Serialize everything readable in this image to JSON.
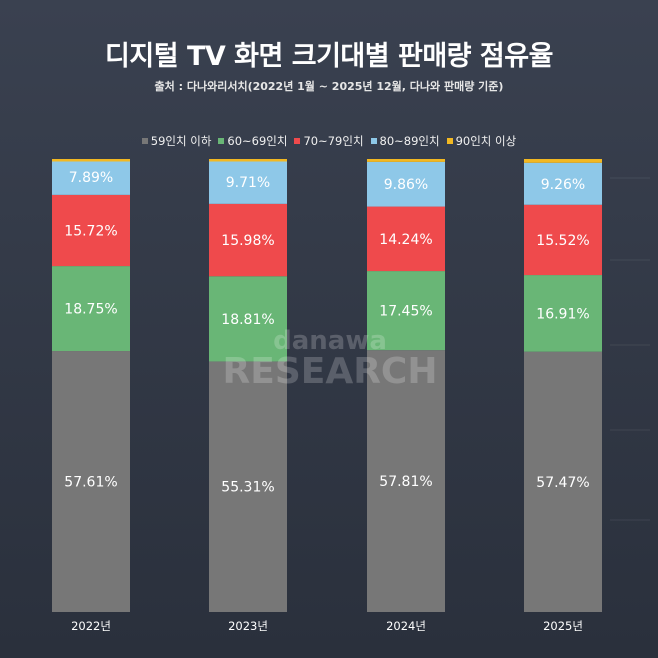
{
  "chart_data": {
    "type": "bar",
    "stacked": true,
    "title": "디지털 TV 화면 크기대별 판매량 점유율",
    "subtitle": "출처 : 다나와리서치(2022년 1월 ~ 2025년 12월, 다나와 판매량 기준)",
    "categories": [
      "2022년",
      "2023년",
      "2024년",
      "2025년"
    ],
    "ylim": [
      0,
      100
    ],
    "legend_position": "top",
    "series": [
      {
        "name": "59인치 이하",
        "color": "#777777",
        "values": [
          57.61,
          55.31,
          57.81,
          57.47
        ],
        "labels": [
          "57.61%",
          "55.31%",
          "57.81%",
          "57.47%"
        ]
      },
      {
        "name": "60~69인치",
        "color": "#69b676",
        "values": [
          18.75,
          18.81,
          17.45,
          16.91
        ],
        "labels": [
          "18.75%",
          "18.81%",
          "17.45%",
          "16.91%"
        ]
      },
      {
        "name": "70~79인치",
        "color": "#ef4a4c",
        "values": [
          15.72,
          15.98,
          14.24,
          15.52
        ],
        "labels": [
          "15.72%",
          "15.98%",
          "14.24%",
          "15.52%"
        ]
      },
      {
        "name": "80~89인치",
        "color": "#8ec8e8",
        "values": [
          7.89,
          9.71,
          9.86,
          9.26
        ],
        "labels": [
          "7.89%",
          "9.71%",
          "9.86%",
          "9.26%"
        ]
      },
      {
        "name": "90인치 이상",
        "color": "#f2b822",
        "values": [
          0.03,
          0.19,
          0.64,
          0.84
        ],
        "labels": []
      }
    ],
    "watermark": [
      "danawa",
      "RESEARCH"
    ]
  }
}
